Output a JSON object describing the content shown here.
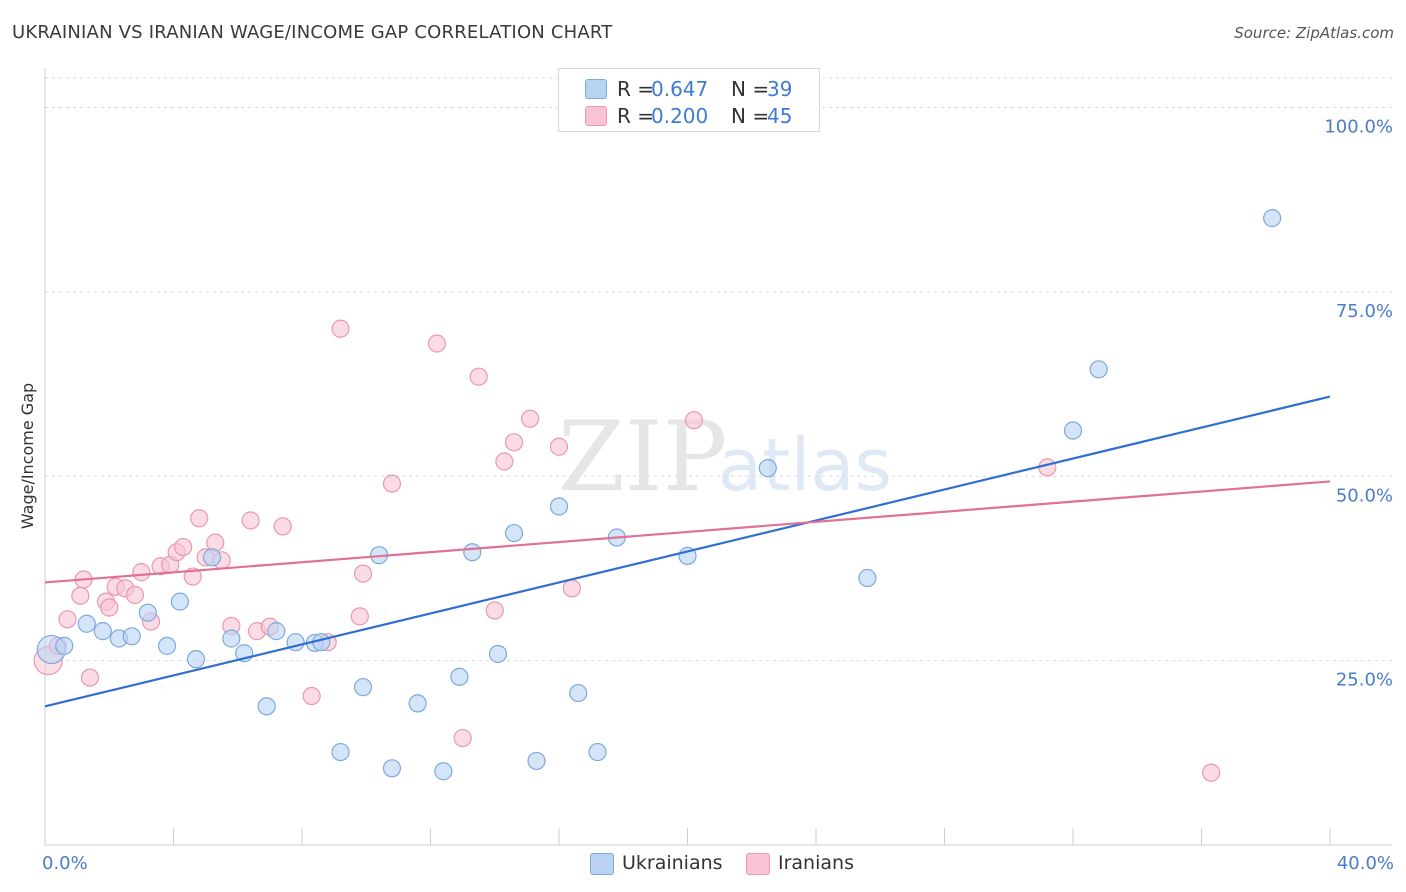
{
  "header": {
    "title": "UKRAINIAN VS IRANIAN WAGE/INCOME GAP CORRELATION CHART",
    "source": "Source: ZipAtlas.com"
  },
  "watermark": {
    "zip": "ZIP",
    "atlas": "atlas"
  },
  "colors": {
    "ukrainians_fill": "#b9d3f3",
    "ukrainians_stroke": "#7ea8df",
    "ukrainians_line": "#2f6fd1",
    "iranians_fill": "#f8c4d3",
    "iranians_stroke": "#e898b2",
    "iranians_line": "#e07098",
    "tick_text": "#4a7cc9",
    "grid": "#d9d9d9"
  },
  "legend": {
    "rows": [
      {
        "r_label": "R =",
        "r_value": "0.647",
        "n_label": "N =",
        "n_value": "39"
      },
      {
        "r_label": "R =",
        "r_value": "0.200",
        "n_label": "N =",
        "n_value": "45"
      }
    ]
  },
  "bottom_legend": {
    "ukrainians": "Ukrainians",
    "iranians": "Iranians"
  },
  "chart_data": {
    "type": "scatter",
    "title": "UKRAINIAN VS IRANIAN WAGE/INCOME GAP CORRELATION CHART",
    "ylabel": "Wage/Income Gap",
    "xlabel": "",
    "xlim": [
      0,
      40
    ],
    "ylim": [
      0,
      104
    ],
    "x_tick_labels": [
      "0.0%",
      "40.0%"
    ],
    "y_ticks": [
      25,
      50,
      75,
      100
    ],
    "y_tick_labels": [
      "25.0%",
      "50.0%",
      "75.0%",
      "100.0%"
    ],
    "grid": "horizontal dashed",
    "legend_placement": "top-center",
    "series": [
      {
        "name": "Ukrainians",
        "r": 0.647,
        "n": 39,
        "trend": [
          [
            0,
            18.8
          ],
          [
            40,
            60.8
          ]
        ],
        "points": [
          [
            0.2,
            26.5
          ],
          [
            0.6,
            27.0
          ],
          [
            1.3,
            30.0
          ],
          [
            1.8,
            29.0
          ],
          [
            2.3,
            28.0
          ],
          [
            2.7,
            28.3
          ],
          [
            3.2,
            31.5
          ],
          [
            3.8,
            27.0
          ],
          [
            4.2,
            33.0
          ],
          [
            4.7,
            25.2
          ],
          [
            5.2,
            39.0
          ],
          [
            5.8,
            28.0
          ],
          [
            6.2,
            26.0
          ],
          [
            6.9,
            18.8
          ],
          [
            7.2,
            29.0
          ],
          [
            7.8,
            27.5
          ],
          [
            8.4,
            27.4
          ],
          [
            8.6,
            27.5
          ],
          [
            9.2,
            12.6
          ],
          [
            9.9,
            21.4
          ],
          [
            10.4,
            39.3
          ],
          [
            10.8,
            10.4
          ],
          [
            11.6,
            19.2
          ],
          [
            12.4,
            10.0
          ],
          [
            12.9,
            22.8
          ],
          [
            13.3,
            39.7
          ],
          [
            14.1,
            25.9
          ],
          [
            14.6,
            42.3
          ],
          [
            15.3,
            11.4
          ],
          [
            16.0,
            45.9
          ],
          [
            16.6,
            20.6
          ],
          [
            17.8,
            41.7
          ],
          [
            17.2,
            12.6
          ],
          [
            20.0,
            39.2
          ],
          [
            22.5,
            51.1
          ],
          [
            25.6,
            36.2
          ],
          [
            32.0,
            56.2
          ],
          [
            32.8,
            64.5
          ],
          [
            38.2,
            85.0
          ]
        ]
      },
      {
        "name": "Iranians",
        "r": 0.2,
        "n": 45,
        "trend": [
          [
            0,
            35.6
          ],
          [
            40,
            49.3
          ]
        ],
        "points": [
          [
            0.1,
            25.0
          ],
          [
            0.4,
            27.0
          ],
          [
            0.7,
            30.6
          ],
          [
            1.1,
            33.8
          ],
          [
            1.2,
            36.0
          ],
          [
            1.4,
            22.7
          ],
          [
            1.9,
            33.0
          ],
          [
            2.0,
            32.2
          ],
          [
            2.2,
            35.0
          ],
          [
            2.5,
            34.8
          ],
          [
            2.8,
            33.9
          ],
          [
            3.0,
            37.0
          ],
          [
            3.3,
            30.3
          ],
          [
            3.6,
            37.8
          ],
          [
            3.9,
            38.0
          ],
          [
            4.1,
            39.7
          ],
          [
            4.3,
            40.4
          ],
          [
            4.6,
            36.4
          ],
          [
            4.8,
            44.3
          ],
          [
            5.0,
            39.0
          ],
          [
            5.3,
            41.0
          ],
          [
            5.5,
            38.6
          ],
          [
            5.8,
            29.7
          ],
          [
            6.4,
            44.0
          ],
          [
            6.6,
            29.0
          ],
          [
            7.0,
            29.6
          ],
          [
            7.4,
            43.2
          ],
          [
            8.3,
            20.2
          ],
          [
            8.8,
            27.5
          ],
          [
            9.2,
            70.0
          ],
          [
            9.8,
            31.0
          ],
          [
            9.9,
            36.8
          ],
          [
            10.8,
            49.0
          ],
          [
            12.2,
            68.0
          ],
          [
            13.0,
            14.5
          ],
          [
            13.5,
            63.5
          ],
          [
            14.0,
            31.8
          ],
          [
            14.3,
            52.0
          ],
          [
            14.6,
            54.6
          ],
          [
            15.1,
            57.8
          ],
          [
            16.0,
            54.0
          ],
          [
            16.4,
            34.8
          ],
          [
            20.2,
            57.6
          ],
          [
            31.2,
            51.2
          ],
          [
            36.3,
            9.8
          ]
        ]
      }
    ]
  }
}
